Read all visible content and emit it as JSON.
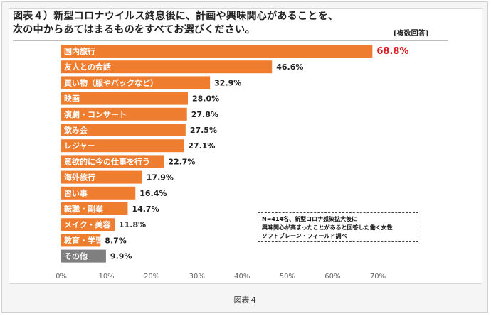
{
  "title_lines": [
    "図表４）新型コロナウイルス終息後に、計画や興味関心があることを、",
    "次の中からあてはまるものをすべてお選びください。"
  ],
  "note_tag": "[複数回答]",
  "source_lines": [
    "N=414名、新型コロナ感染拡大後に",
    "興味関心が高まったことがあると回答した働く女性",
    "ソフトブレーン・フィールド調べ"
  ],
  "caption": "図表４",
  "chart_data": {
    "type": "bar",
    "orientation": "horizontal",
    "categories": [
      "国内旅行",
      "友人との会話",
      "買い物（服やバックなど）",
      "映画",
      "演劇・コンサート",
      "飲み会",
      "レジャー",
      "意欲的に今の仕事を行う",
      "海外旅行",
      "習い事",
      "転職・副業",
      "メイク・美容",
      "教育・学習",
      "その他"
    ],
    "values": [
      68.8,
      46.6,
      32.9,
      28.0,
      27.8,
      27.5,
      27.1,
      22.7,
      17.9,
      16.4,
      14.7,
      11.8,
      8.7,
      9.9
    ],
    "value_labels": [
      "68.8%",
      "46.6%",
      "32.9%",
      "28.0%",
      "27.8%",
      "27.5%",
      "27.1%",
      "22.7%",
      "17.9%",
      "16.4%",
      "14.7%",
      "11.8%",
      "8.7%",
      "9.9%"
    ],
    "xlim": [
      0,
      70
    ],
    "xticks": [
      "0%",
      "10%",
      "20%",
      "30%",
      "40%",
      "50%",
      "60%",
      "70%"
    ],
    "grid": false,
    "colors": {
      "bar": "#ef7d30",
      "bar_other": "#7f7f7f",
      "highlight_label": "#e0191f"
    },
    "highlight_index": 0,
    "other_index": 13
  }
}
